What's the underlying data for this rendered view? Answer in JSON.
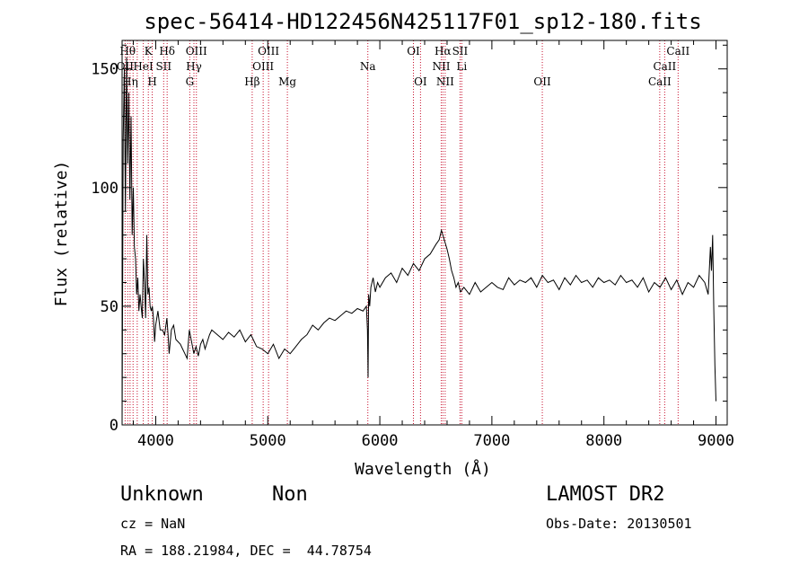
{
  "chart_data": {
    "type": "line",
    "title": "spec-56414-HD122456N425117F01_sp12-180.fits",
    "xlabel": "Wavelength (Å)",
    "ylabel": "Flux (relative)",
    "xlim": [
      3700,
      9100
    ],
    "ylim": [
      0,
      162
    ],
    "xticks": [
      4000,
      5000,
      6000,
      7000,
      8000,
      9000
    ],
    "yticks": [
      0,
      50,
      100,
      150
    ],
    "series": [
      {
        "x": [
          3700,
          3710,
          3720,
          3730,
          3740,
          3750,
          3760,
          3770,
          3780,
          3790,
          3800,
          3810,
          3820,
          3830,
          3840,
          3850,
          3860,
          3870,
          3880,
          3890,
          3900,
          3910,
          3920,
          3930,
          3940,
          3950,
          3960,
          3970,
          3980,
          3990,
          4000,
          4020,
          4040,
          4060,
          4080,
          4100,
          4110,
          4120,
          4140,
          4160,
          4180,
          4200,
          4220,
          4240,
          4260,
          4280,
          4300,
          4320,
          4340,
          4360,
          4380,
          4400,
          4420,
          4440,
          4460,
          4480,
          4500,
          4550,
          4600,
          4650,
          4700,
          4750,
          4800,
          4850,
          4900,
          4950,
          5000,
          5050,
          5100,
          5150,
          5200,
          5250,
          5300,
          5350,
          5400,
          5450,
          5500,
          5550,
          5600,
          5650,
          5700,
          5750,
          5800,
          5850,
          5880,
          5890,
          5895,
          5900,
          5910,
          5920,
          5940,
          5960,
          5980,
          6000,
          6050,
          6100,
          6150,
          6200,
          6250,
          6300,
          6350,
          6400,
          6450,
          6500,
          6530,
          6550,
          6563,
          6575,
          6600,
          6620,
          6640,
          6660,
          6680,
          6700,
          6720,
          6750,
          6800,
          6850,
          6900,
          6950,
          7000,
          7050,
          7100,
          7150,
          7200,
          7250,
          7300,
          7350,
          7400,
          7450,
          7500,
          7550,
          7600,
          7650,
          7700,
          7750,
          7800,
          7850,
          7900,
          7950,
          8000,
          8050,
          8100,
          8150,
          8200,
          8250,
          8300,
          8350,
          8400,
          8450,
          8500,
          8550,
          8600,
          8650,
          8700,
          8750,
          8800,
          8850,
          8900,
          8930,
          8950,
          8960,
          8970,
          8980,
          8990,
          9000
        ],
        "y": [
          0,
          120,
          150,
          90,
          155,
          110,
          140,
          95,
          130,
          80,
          100,
          75,
          70,
          55,
          62,
          48,
          55,
          50,
          45,
          70,
          60,
          45,
          80,
          55,
          58,
          50,
          48,
          50,
          45,
          35,
          42,
          48,
          40,
          40,
          38,
          45,
          38,
          30,
          40,
          42,
          36,
          35,
          34,
          32,
          30,
          28,
          40,
          35,
          30,
          33,
          29,
          34,
          36,
          32,
          35,
          38,
          40,
          38,
          36,
          39,
          37,
          40,
          35,
          38,
          33,
          32,
          30,
          34,
          28,
          32,
          30,
          33,
          36,
          38,
          42,
          40,
          43,
          45,
          44,
          46,
          48,
          47,
          49,
          48,
          50,
          40,
          20,
          55,
          50,
          58,
          62,
          56,
          60,
          58,
          62,
          64,
          60,
          66,
          63,
          68,
          65,
          70,
          72,
          76,
          78,
          82,
          80,
          78,
          74,
          70,
          65,
          62,
          58,
          60,
          56,
          58,
          55,
          60,
          56,
          58,
          60,
          58,
          57,
          62,
          59,
          61,
          60,
          62,
          58,
          63,
          60,
          61,
          57,
          62,
          59,
          63,
          60,
          61,
          58,
          62,
          60,
          61,
          59,
          63,
          60,
          61,
          58,
          62,
          56,
          60,
          58,
          62,
          57,
          61,
          55,
          60,
          58,
          63,
          60,
          55,
          75,
          65,
          80,
          50,
          25,
          10
        ]
      }
    ],
    "lines_red": [
      {
        "x": 3727,
        "label": "OII",
        "row": 1
      },
      {
        "x": 3750,
        "label": "Hθ",
        "row": 0
      },
      {
        "x": 3771,
        "label": "Hη",
        "row": 2
      },
      {
        "x": 3798,
        "label": "",
        "row": 0
      },
      {
        "x": 3835,
        "label": "",
        "row": 0
      },
      {
        "x": 3889,
        "label": "HeI",
        "row": 1
      },
      {
        "x": 3934,
        "label": "K",
        "row": 0
      },
      {
        "x": 3969,
        "label": "H",
        "row": 2
      },
      {
        "x": 4071,
        "label": "SII",
        "row": 1
      },
      {
        "x": 4102,
        "label": "Hδ",
        "row": 0
      },
      {
        "x": 4304,
        "label": "G",
        "row": 2
      },
      {
        "x": 4341,
        "label": "Hγ",
        "row": 1
      },
      {
        "x": 4363,
        "label": "OIII",
        "row": 0
      },
      {
        "x": 4861,
        "label": "Hβ",
        "row": 2
      },
      {
        "x": 4959,
        "label": "OIII",
        "row": 1
      },
      {
        "x": 5007,
        "label": "OIII",
        "row": 0
      },
      {
        "x": 5175,
        "label": "Mg",
        "row": 2
      },
      {
        "x": 5893,
        "label": "Na",
        "row": 1
      },
      {
        "x": 6300,
        "label": "OI",
        "row": 0
      },
      {
        "x": 6363,
        "label": "OI",
        "row": 2
      },
      {
        "x": 6548,
        "label": "NII",
        "row": 1
      },
      {
        "x": 6563,
        "label": "Hα",
        "row": 0
      },
      {
        "x": 6583,
        "label": "NII",
        "row": 2
      },
      {
        "x": 6716,
        "label": "SII",
        "row": 0
      },
      {
        "x": 6731,
        "label": "Li",
        "row": 1
      },
      {
        "x": 7450,
        "label": "OII",
        "row": 2
      },
      {
        "x": 8498,
        "label": "CaII",
        "row": 2
      },
      {
        "x": 8542,
        "label": "CaII",
        "row": 1
      },
      {
        "x": 8662,
        "label": "CaII",
        "row": 0
      }
    ]
  },
  "info": {
    "class": "Unknown",
    "subclass": "Non",
    "survey": "LAMOST DR2",
    "cz": "cz = NaN",
    "obs_date": "Obs-Date: 20130501",
    "radec": "RA = 188.21984, DEC =  44.78754"
  }
}
